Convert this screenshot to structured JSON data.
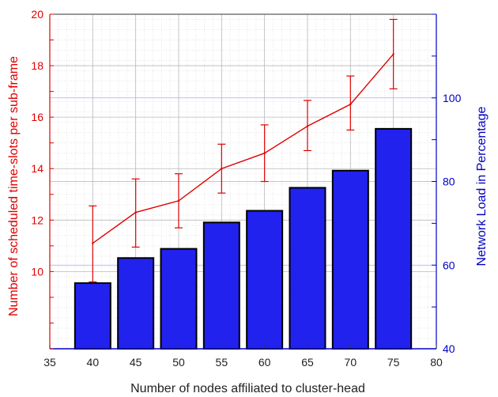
{
  "chart_data": {
    "type": "bar+line",
    "xlabel": "Number of nodes affiliated to cluster-head",
    "ylabel_left": "Number of scheduled time-slots per sub-frame",
    "ylabel_right": "Network Load in Percentage",
    "xlim": [
      35,
      80
    ],
    "ylim_left": [
      7,
      20
    ],
    "ylim_right": [
      40,
      120
    ],
    "x_ticks": [
      "35",
      "40",
      "45",
      "50",
      "55",
      "60",
      "65",
      "70",
      "75",
      "80"
    ],
    "y_ticks_left": [
      "10",
      "12",
      "14",
      "16",
      "18",
      "20"
    ],
    "y_ticks_right": [
      "40",
      "60",
      "80",
      "100"
    ],
    "x": [
      40,
      45,
      50,
      55,
      60,
      65,
      70,
      75
    ],
    "bars": {
      "name": "Network Load in Percentage",
      "axis": "right",
      "values": [
        55.7,
        61.7,
        63.9,
        70.2,
        73.0,
        78.5,
        82.6,
        92.6
      ]
    },
    "line": {
      "name": "Number of scheduled time-slots per sub-frame",
      "axis": "left",
      "values": [
        11.1,
        12.3,
        12.75,
        14.0,
        14.6,
        15.65,
        16.5,
        18.45
      ],
      "err_low": [
        9.6,
        10.95,
        11.7,
        13.05,
        13.5,
        14.7,
        15.5,
        17.1
      ],
      "err_high": [
        12.55,
        13.6,
        13.8,
        14.95,
        15.7,
        16.65,
        17.6,
        19.8
      ]
    },
    "colors": {
      "left_axis": "#e00000",
      "right_axis": "#0000c0",
      "bar_fill": "#2222ee",
      "bar_edge": "#000000",
      "line": "#e00000",
      "grid_major": "#b8b8b8",
      "grid_minor": "#e0e0e0",
      "grid_right": "#aaaaee"
    },
    "grid": true
  }
}
